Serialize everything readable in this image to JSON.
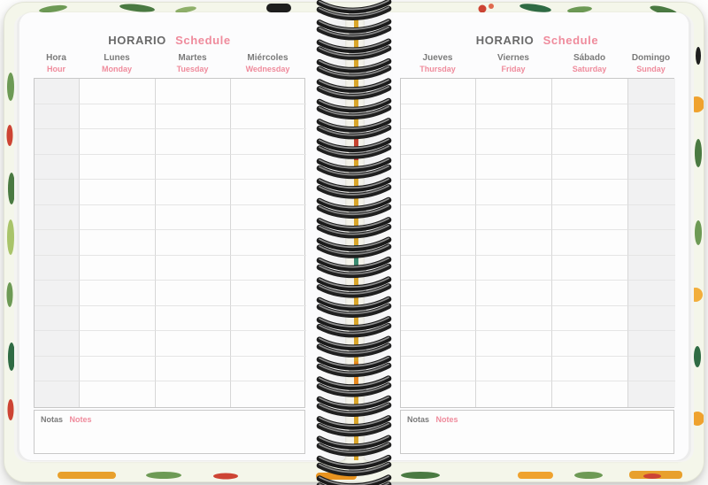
{
  "planner": {
    "left_page": {
      "title": {
        "es": "HORARIO",
        "en": "Schedule"
      },
      "columns": [
        {
          "es": "Hora",
          "en": "Hour",
          "shaded": true
        },
        {
          "es": "Lunes",
          "en": "Monday",
          "shaded": false
        },
        {
          "es": "Martes",
          "en": "Tuesday",
          "shaded": false
        },
        {
          "es": "Miércoles",
          "en": "Wednesday",
          "shaded": false
        }
      ],
      "rows": 13,
      "notes": {
        "es": "Notas",
        "en": "Notes"
      }
    },
    "right_page": {
      "title": {
        "es": "HORARIO",
        "en": "Schedule"
      },
      "columns": [
        {
          "es": "Jueves",
          "en": "Thursday",
          "shaded": false
        },
        {
          "es": "Viernes",
          "en": "Friday",
          "shaded": false
        },
        {
          "es": "Sábado",
          "en": "Saturday",
          "shaded": false
        },
        {
          "es": "Domingo",
          "en": "Sunday",
          "shaded": true
        }
      ],
      "rows": 13,
      "notes": {
        "es": "Notas",
        "en": "Notes"
      }
    },
    "binding": {
      "type": "wire-o-spiral",
      "loops": 25,
      "color": "#1a1a1a"
    },
    "colors": {
      "accent_pink": "#ef8b9c",
      "text_gray": "#747474",
      "shaded_column": "#f1f1f2",
      "grid_line": "#d7d7d7",
      "cover_orange": "#e8a02c",
      "cover_green": "#5c8f4e",
      "cover_red": "#cd4434",
      "tab_mustard": "#d9a52a"
    }
  }
}
